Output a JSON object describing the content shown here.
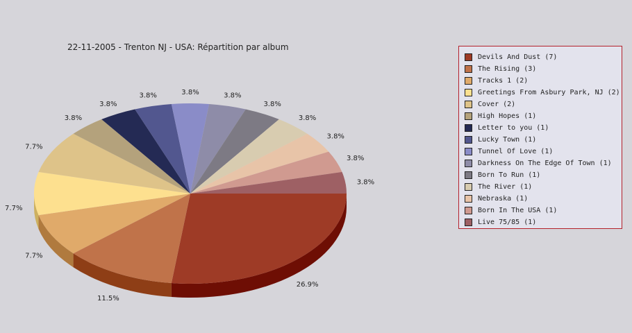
{
  "chart_data": {
    "type": "pie",
    "title": "22-11-2005 - Trenton NJ - USA:  Répartition par album",
    "legend_position": "right",
    "slices": [
      {
        "label": "Devils And Dust (7)",
        "value": 7,
        "percent_label": "26.9%",
        "color": "#9e3b26",
        "side": "#6e0e04"
      },
      {
        "label": "The Rising (3)",
        "value": 3,
        "percent_label": "11.5%",
        "color": "#c0734a",
        "side": "#8e3e16"
      },
      {
        "label": "Tracks 1 (2)",
        "value": 2,
        "percent_label": "7.7%",
        "color": "#e0aa6a",
        "side": "#b07a3e"
      },
      {
        "label": "Greetings From Asbury Park, NJ (2)",
        "value": 2,
        "percent_label": "7.7%",
        "color": "#fde08f",
        "side": "#cdb05f"
      },
      {
        "label": "Cover (2)",
        "value": 2,
        "percent_label": "7.7%",
        "color": "#dec389",
        "side": "#ae9359"
      },
      {
        "label": "High Hopes (1)",
        "value": 1,
        "percent_label": "3.8%",
        "color": "#b4a27c",
        "side": "#84724c"
      },
      {
        "label": "Letter to you (1)",
        "value": 1,
        "percent_label": "3.8%",
        "color": "#242a54",
        "side": "#101430"
      },
      {
        "label": "Lucky Town (1)",
        "value": 1,
        "percent_label": "3.8%",
        "color": "#52578f",
        "side": "#32376f"
      },
      {
        "label": "Tunnel Of Love (1)",
        "value": 1,
        "percent_label": "3.8%",
        "color": "#8a8cc8",
        "side": "#5a5c98"
      },
      {
        "label": "Darkness On The Edge Of Town (1)",
        "value": 1,
        "percent_label": "3.8%",
        "color": "#8e8ca8",
        "side": "#5e5c78"
      },
      {
        "label": "Born To Run (1)",
        "value": 1,
        "percent_label": "3.8%",
        "color": "#7d7a84",
        "side": "#4d4a54"
      },
      {
        "label": "The River (1)",
        "value": 1,
        "percent_label": "3.8%",
        "color": "#d8ccb0",
        "side": "#a89c80"
      },
      {
        "label": "Nebraska (1)",
        "value": 1,
        "percent_label": "3.8%",
        "color": "#e8c4a8",
        "side": "#b89478"
      },
      {
        "label": "Born In The USA (1)",
        "value": 1,
        "percent_label": "3.8%",
        "color": "#d09a90",
        "side": "#a06a60"
      },
      {
        "label": "Live 75/85 (1)",
        "value": 1,
        "percent_label": "3.8%",
        "color": "#9e6064",
        "side": "#6e3034"
      }
    ]
  }
}
